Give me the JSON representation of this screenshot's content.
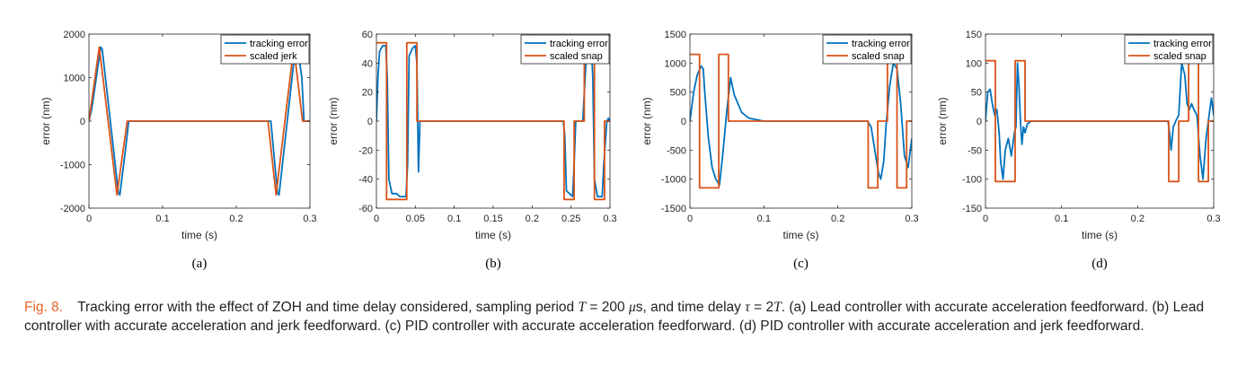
{
  "caption": {
    "label": "Fig. 8.",
    "text_a": "Tracking error with the effect of ZOH and time delay considered, sampling period ",
    "math_T": "T",
    "text_b": " = 200 ",
    "math_mu": "μ",
    "text_c": "s, and time delay ",
    "math_tau": "τ",
    "text_d": " = 2",
    "math_T2": "T",
    "text_e": ". (a) Lead controller with accurate acceleration feedforward. (b) Lead controller with accurate acceleration and jerk feedforward. (c) PID controller with accurate acceleration feedforward. (d) PID controller with accurate acceleration and jerk feedforward."
  },
  "colors": {
    "tracking": "#0072bd",
    "scaled": "#d95319"
  },
  "chart_data": [
    {
      "type": "line",
      "panel_label": "(a)",
      "xlabel": "time (s)",
      "ylabel": "error (nm)",
      "xlim": [
        0,
        0.3
      ],
      "ylim": [
        -2000,
        2000
      ],
      "xticks": [
        0,
        0.1,
        0.2,
        0.3
      ],
      "xtick_labels": [
        "0",
        "0.1",
        "0.2",
        "0.3"
      ],
      "yticks": [
        -2000,
        -1000,
        0,
        1000,
        2000
      ],
      "ytick_labels": [
        "-2000",
        "-1000",
        "0",
        "1000",
        "2000"
      ],
      "legend_position": "top-right",
      "series": [
        {
          "name": "tracking error",
          "color": "#0072bd",
          "x": [
            0,
            0.004,
            0.016,
            0.018,
            0.04,
            0.042,
            0.05,
            0.054,
            0.056,
            0.245,
            0.247,
            0.256,
            0.258,
            0.28,
            0.283,
            0.289,
            0.292,
            0.3
          ],
          "y": [
            0,
            300,
            1700,
            1650,
            -1650,
            -1700,
            -600,
            0,
            0,
            0,
            0,
            -1650,
            -1700,
            1650,
            1700,
            1000,
            0,
            0
          ]
        },
        {
          "name": "scaled jerk",
          "color": "#d95319",
          "x": [
            0,
            0.014,
            0.038,
            0.052,
            0.243,
            0.254,
            0.278,
            0.29,
            0.3
          ],
          "y": [
            0,
            1700,
            -1700,
            0,
            0,
            -1700,
            1700,
            0,
            0
          ]
        }
      ]
    },
    {
      "type": "line",
      "panel_label": "(b)",
      "xlabel": "time (s)",
      "ylabel": "error (nm)",
      "xlim": [
        0,
        0.3
      ],
      "ylim": [
        -60,
        60
      ],
      "xticks": [
        0,
        0.05,
        0.1,
        0.15,
        0.2,
        0.25,
        0.3
      ],
      "xtick_labels": [
        "0",
        "0.05",
        "0.1",
        "0.15",
        "0.2",
        "0.25",
        "0.3"
      ],
      "yticks": [
        -60,
        -40,
        -20,
        0,
        20,
        40,
        60
      ],
      "ytick_labels": [
        "-60",
        "-40",
        "-20",
        "0",
        "20",
        "40",
        "60"
      ],
      "legend_position": "top-right",
      "series": [
        {
          "name": "tracking error",
          "color": "#0072bd",
          "x": [
            0,
            0.002,
            0.004,
            0.008,
            0.012,
            0.014,
            0.016,
            0.02,
            0.026,
            0.03,
            0.038,
            0.04,
            0.042,
            0.046,
            0.05,
            0.052,
            0.054,
            0.056,
            0.24,
            0.242,
            0.244,
            0.252,
            0.254,
            0.256,
            0.265,
            0.268,
            0.27,
            0.272,
            0.276,
            0.278,
            0.28,
            0.284,
            0.29,
            0.292,
            0.296,
            0.298,
            0.3
          ],
          "y": [
            0,
            30,
            48,
            52,
            52,
            30,
            -40,
            -50,
            -50,
            -52,
            -52,
            -30,
            45,
            50,
            52,
            40,
            -35,
            0,
            0,
            -10,
            -48,
            -52,
            -30,
            0,
            0,
            30,
            48,
            52,
            52,
            30,
            -40,
            -52,
            -52,
            -30,
            0,
            2,
            0
          ]
        },
        {
          "name": "scaled snap",
          "color": "#d95319",
          "x": [
            0,
            0.013,
            0.013,
            0.039,
            0.039,
            0.052,
            0.052,
            0.241,
            0.241,
            0.254,
            0.254,
            0.267,
            0.267,
            0.28,
            0.28,
            0.293,
            0.293,
            0.3
          ],
          "y": [
            54,
            54,
            -54,
            -54,
            54,
            54,
            0,
            0,
            -54,
            -54,
            0,
            0,
            54,
            54,
            -54,
            -54,
            0,
            0
          ]
        }
      ]
    },
    {
      "type": "line",
      "panel_label": "(c)",
      "xlabel": "time (s)",
      "ylabel": "error (nm)",
      "xlim": [
        0,
        0.3
      ],
      "ylim": [
        -1500,
        1500
      ],
      "xticks": [
        0,
        0.1,
        0.2,
        0.3
      ],
      "xtick_labels": [
        "0",
        "0.1",
        "0.2",
        "0.3"
      ],
      "yticks": [
        -1500,
        -1000,
        -500,
        0,
        500,
        1000,
        1500
      ],
      "ytick_labels": [
        "-1500",
        "-1000",
        "-500",
        "0",
        "500",
        "1000",
        "1500"
      ],
      "legend_position": "top-right",
      "series": [
        {
          "name": "tracking error",
          "color": "#0072bd",
          "x": [
            0,
            0.005,
            0.01,
            0.015,
            0.018,
            0.02,
            0.025,
            0.03,
            0.035,
            0.04,
            0.045,
            0.05,
            0.055,
            0.06,
            0.07,
            0.08,
            0.1,
            0.24,
            0.245,
            0.25,
            0.255,
            0.258,
            0.262,
            0.265,
            0.27,
            0.275,
            0.28,
            0.285,
            0.29,
            0.295,
            0.3
          ],
          "y": [
            0,
            500,
            800,
            950,
            900,
            500,
            -300,
            -800,
            -1000,
            -1100,
            -500,
            200,
            750,
            450,
            150,
            50,
            0,
            0,
            -100,
            -500,
            -900,
            -1000,
            -700,
            -100,
            600,
            1000,
            900,
            300,
            -600,
            -800,
            -300
          ]
        },
        {
          "name": "scaled snap",
          "color": "#d95319",
          "x": [
            0,
            0.013,
            0.013,
            0.039,
            0.039,
            0.052,
            0.052,
            0.241,
            0.241,
            0.254,
            0.254,
            0.267,
            0.267,
            0.28,
            0.28,
            0.293,
            0.293,
            0.3
          ],
          "y": [
            1150,
            1150,
            -1150,
            -1150,
            1150,
            1150,
            0,
            0,
            -1150,
            -1150,
            0,
            0,
            1150,
            1150,
            -1150,
            -1150,
            0,
            0
          ]
        }
      ]
    },
    {
      "type": "line",
      "panel_label": "(d)",
      "xlabel": "time (s)",
      "ylabel": "error (nm)",
      "xlim": [
        0,
        0.3
      ],
      "ylim": [
        -150,
        150
      ],
      "xticks": [
        0,
        0.1,
        0.2,
        0.3
      ],
      "xtick_labels": [
        "0",
        "0.1",
        "0.2",
        "0.3"
      ],
      "yticks": [
        -150,
        -100,
        -50,
        0,
        50,
        100,
        150
      ],
      "ytick_labels": [
        "-150",
        "-100",
        "-50",
        "0",
        "50",
        "100",
        "150"
      ],
      "legend_position": "top-right",
      "series": [
        {
          "name": "tracking error",
          "color": "#0072bd",
          "x": [
            0,
            0.003,
            0.006,
            0.009,
            0.012,
            0.015,
            0.018,
            0.02,
            0.023,
            0.026,
            0.03,
            0.034,
            0.038,
            0.04,
            0.042,
            0.044,
            0.046,
            0.048,
            0.05,
            0.052,
            0.055,
            0.06,
            0.07,
            0.08,
            0.24,
            0.242,
            0.244,
            0.247,
            0.25,
            0.254,
            0.258,
            0.262,
            0.265,
            0.268,
            0.271,
            0.274,
            0.278,
            0.282,
            0.286,
            0.29,
            0.294,
            0.297,
            0.3
          ],
          "y": [
            0,
            50,
            55,
            30,
            10,
            20,
            -20,
            -70,
            -100,
            -50,
            -30,
            -60,
            -20,
            -10,
            100,
            60,
            0,
            -40,
            -10,
            -20,
            -5,
            0,
            0,
            0,
            0,
            -20,
            -50,
            -10,
            0,
            10,
            100,
            80,
            30,
            20,
            30,
            20,
            10,
            -60,
            -100,
            -30,
            10,
            40,
            10
          ]
        },
        {
          "name": "scaled snap",
          "color": "#d95319",
          "x": [
            0,
            0.013,
            0.013,
            0.039,
            0.039,
            0.052,
            0.052,
            0.241,
            0.241,
            0.254,
            0.254,
            0.267,
            0.267,
            0.28,
            0.28,
            0.293,
            0.293,
            0.3
          ],
          "y": [
            104,
            104,
            -104,
            -104,
            104,
            104,
            0,
            0,
            -104,
            -104,
            0,
            0,
            104,
            104,
            -104,
            -104,
            0,
            0
          ]
        }
      ]
    }
  ]
}
